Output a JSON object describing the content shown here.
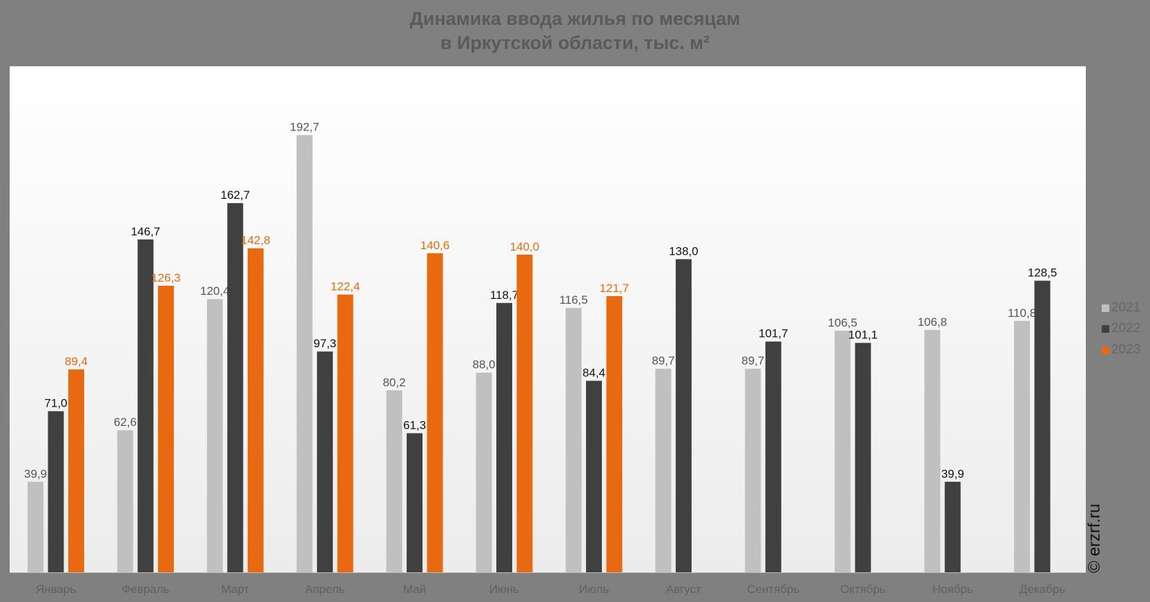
{
  "chart_data": {
    "type": "bar",
    "title_line1": "Динамика ввода жилья по месяцам",
    "title_line2": "в Иркутской области, тыс. м²",
    "categories": [
      "Январь",
      "Февраль",
      "Март",
      "Апрель",
      "Май",
      "Июнь",
      "Июль",
      "Август",
      "Сентябрь",
      "Октябрь",
      "Ноябрь",
      "Декабрь"
    ],
    "series": [
      {
        "name": "2021",
        "color": "#c0c0c0",
        "label_color": "#555555",
        "values": [
          39.9,
          62.6,
          120.4,
          192.7,
          80.2,
          88.0,
          116.5,
          89.7,
          89.7,
          106.5,
          106.8,
          110.8
        ]
      },
      {
        "name": "2022",
        "color": "#404040",
        "label_color": "#111111",
        "values": [
          71.0,
          146.7,
          162.7,
          97.3,
          61.3,
          118.7,
          84.4,
          138.0,
          101.7,
          101.1,
          39.9,
          128.5
        ]
      },
      {
        "name": "2023",
        "color": "#e8690f",
        "label_color": "#e8690f",
        "values": [
          89.4,
          126.3,
          142.8,
          122.4,
          140.6,
          140.0,
          121.7,
          null,
          null,
          null,
          null,
          null
        ]
      }
    ],
    "ylim": [
      0,
      223
    ],
    "grid": false,
    "legend_position": "right"
  },
  "watermark": "© erzrf.ru"
}
